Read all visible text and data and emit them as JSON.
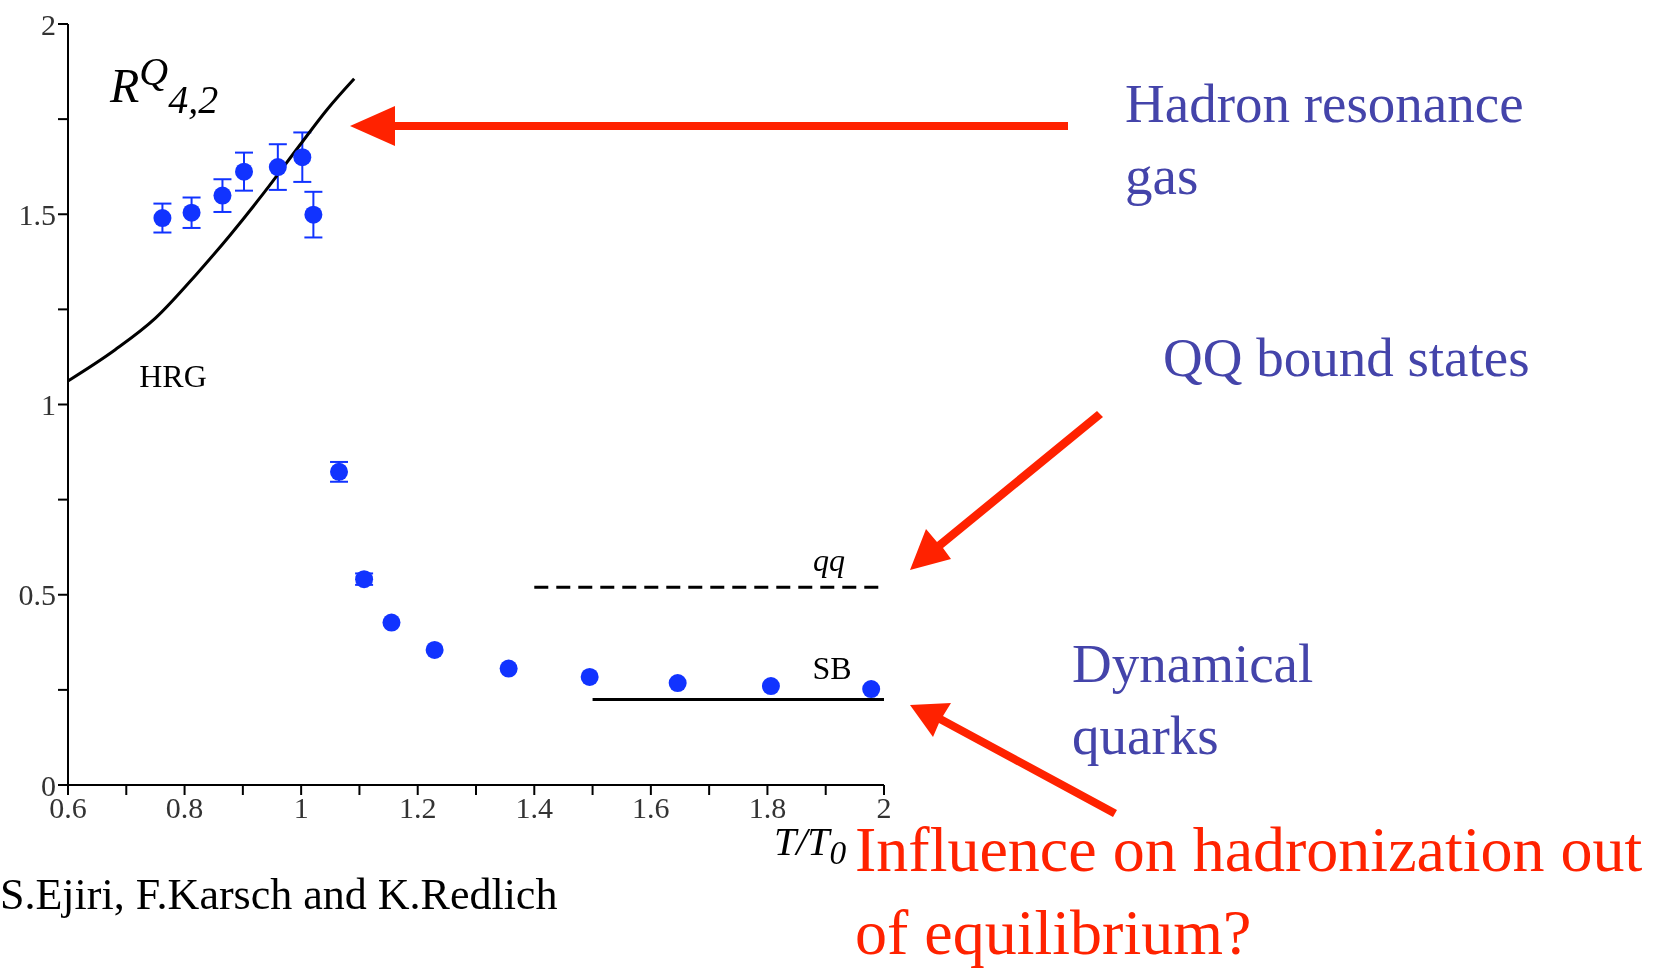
{
  "chart_data": {
    "type": "scatter",
    "xlabel": "T/T$_{0}$",
    "ylabel": "R$^{Q}$$_{4,2}$",
    "xlim": [
      0.6,
      2
    ],
    "ylim": [
      0,
      2
    ],
    "xticks": [
      0.6,
      {
        "value": 0.7,
        "label": null
      },
      0.8,
      {
        "value": 0.9,
        "label": null
      },
      1,
      {
        "value": 1.1,
        "label": null
      },
      1.2,
      {
        "value": 1.3,
        "label": null
      },
      1.4,
      {
        "value": 1.5,
        "label": null
      },
      1.6,
      {
        "value": 1.7,
        "label": null
      },
      1.8,
      {
        "value": 1.9,
        "label": null
      },
      2
    ],
    "yticks": [
      0,
      {
        "value": 0.25,
        "label": null
      },
      0.5,
      {
        "value": 0.75,
        "label": null
      },
      1,
      {
        "value": 1.25,
        "label": null
      },
      1.5,
      {
        "value": 1.75,
        "label": null
      },
      2
    ],
    "grid": false,
    "legend": false,
    "series": [
      {
        "color": "#1133ff",
        "marker": "circle",
        "x": [
          0.762,
          0.812,
          0.865,
          0.902,
          0.96,
          1.002,
          1.021,
          1.065,
          1.108,
          1.155,
          1.229,
          1.356,
          1.495,
          1.646,
          1.806,
          1.978
        ],
        "values": [
          1.49,
          1.504,
          1.549,
          1.612,
          1.624,
          1.65,
          1.499,
          0.823,
          0.541,
          0.427,
          0.355,
          0.306,
          0.284,
          0.268,
          0.26,
          0.252
        ],
        "errors": [
          0.038,
          0.04,
          0.043,
          0.05,
          0.06,
          0.065,
          0.06,
          0.026,
          0.015,
          null,
          null,
          null,
          null,
          null,
          null,
          null
        ]
      },
      {
        "type": "line",
        "name": "HRG",
        "color": "#000000",
        "line_style": "solid",
        "x": [
          0.6,
          0.681,
          0.75,
          0.819,
          0.878,
          0.937,
          0.996,
          1.045,
          1.091
        ],
        "values": [
          1.062,
          1.144,
          1.227,
          1.34,
          1.445,
          1.558,
          1.678,
          1.776,
          1.856
        ]
      },
      {
        "type": "line",
        "name": "qq",
        "color": "#000000",
        "line_style": "dashed",
        "x": [
          1.4,
          2
        ],
        "values": [
          0.52,
          0.52
        ]
      },
      {
        "type": "line",
        "name": "SB",
        "color": "#000000",
        "line_style": "solid",
        "x": [
          1.5,
          2
        ],
        "values": [
          0.225,
          0.225
        ]
      }
    ],
    "annotations": [
      "Hadron resonance gas",
      "QQ bound states",
      "Dynamical quarks",
      "Influence on hadronization out of equilibrium?",
      "S.Ejiri, F.Karsch and K.Redlich"
    ]
  }
}
